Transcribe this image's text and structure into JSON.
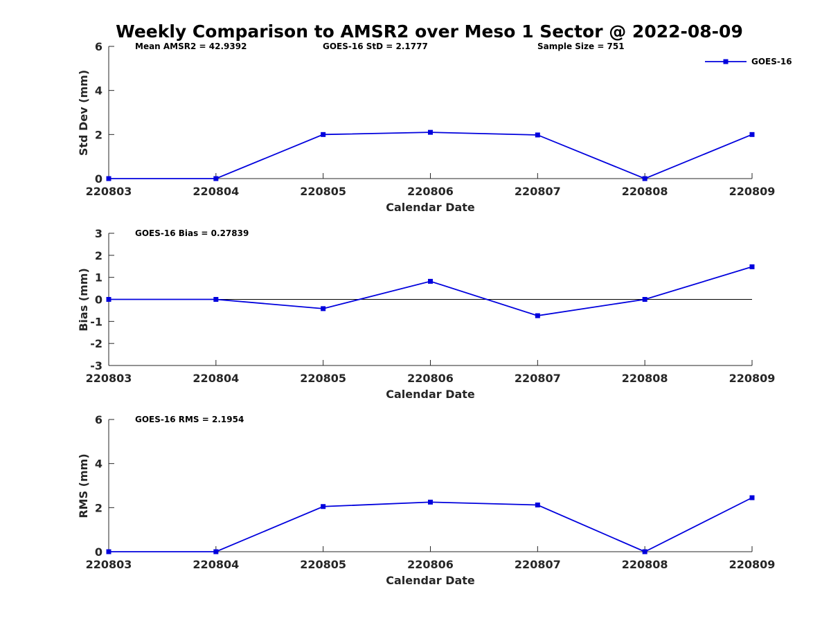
{
  "figure_title": "Weekly Comparison to AMSR2 over Meso 1 Sector @ 2022-08-09",
  "colors": {
    "series": "#0000dd",
    "axis": "#262626",
    "zero_line": "#000000"
  },
  "chart_data": [
    {
      "type": "line",
      "xlabel": "Calendar Date",
      "ylabel": "Std Dev (mm)",
      "categories": [
        "220803",
        "220804",
        "220805",
        "220806",
        "220807",
        "220808",
        "220809"
      ],
      "ylim": [
        0,
        6
      ],
      "yticks": [
        0,
        2,
        4,
        6
      ],
      "zero_line": false,
      "annotations": [
        "Mean AMSR2 = 42.9392",
        "GOES-16 StD = 2.1777",
        "Sample Size = 751"
      ],
      "legend": {
        "label": "GOES-16",
        "placement": "top-right"
      },
      "series": [
        {
          "name": "GOES-16",
          "values": [
            0,
            0,
            2.0,
            2.1,
            1.98,
            0,
            2.0
          ]
        }
      ]
    },
    {
      "type": "line",
      "xlabel": "Calendar Date",
      "ylabel": "Bias (mm)",
      "categories": [
        "220803",
        "220804",
        "220805",
        "220806",
        "220807",
        "220808",
        "220809"
      ],
      "ylim": [
        -3,
        3
      ],
      "yticks": [
        -3,
        -2,
        -1,
        0,
        1,
        2,
        3
      ],
      "zero_line": true,
      "annotations": [
        "GOES-16 Bias  = 0.27839"
      ],
      "series": [
        {
          "name": "GOES-16",
          "values": [
            0,
            0,
            -0.42,
            0.82,
            -0.74,
            0,
            1.48
          ]
        }
      ]
    },
    {
      "type": "line",
      "xlabel": "Calendar Date",
      "ylabel": "RMS (mm)",
      "categories": [
        "220803",
        "220804",
        "220805",
        "220806",
        "220807",
        "220808",
        "220809"
      ],
      "ylim": [
        0,
        6
      ],
      "yticks": [
        0,
        2,
        4,
        6
      ],
      "zero_line": false,
      "annotations": [
        "GOES-16 RMS = 2.1954"
      ],
      "series": [
        {
          "name": "GOES-16",
          "values": [
            0,
            0,
            2.05,
            2.25,
            2.12,
            0,
            2.45
          ]
        }
      ]
    }
  ]
}
